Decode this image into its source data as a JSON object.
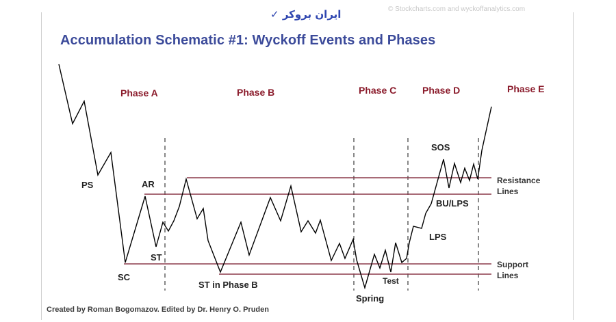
{
  "title": "Accumulation Schematic #1: Wyckoff Events and Phases",
  "watermark": "ایران بروکر",
  "credit_top": "© Stockcharts.com and wyckoffanalytics.com",
  "credit": "Created by Roman Bogomazov. Edited by Dr. Henry O. Pruden",
  "phases": {
    "a": "Phase A",
    "b": "Phase B",
    "c": "Phase C",
    "d": "Phase D",
    "e": "Phase E"
  },
  "events": {
    "ps": "PS",
    "sc": "SC",
    "ar": "AR",
    "st": "ST",
    "st_phase_b": "ST in Phase B",
    "spring": "Spring",
    "test": "Test",
    "lps": "LPS",
    "bu_lps": "BU/LPS",
    "sos": "SOS"
  },
  "lines": {
    "resistance": "Resistance Lines",
    "support": "Support Lines"
  },
  "colors": {
    "title": "#3b4a9a",
    "phase_label": "#8b1c2c",
    "level_line": "#8b3a4a",
    "price_line": "#000000",
    "watermark": "#2f46b0"
  }
}
